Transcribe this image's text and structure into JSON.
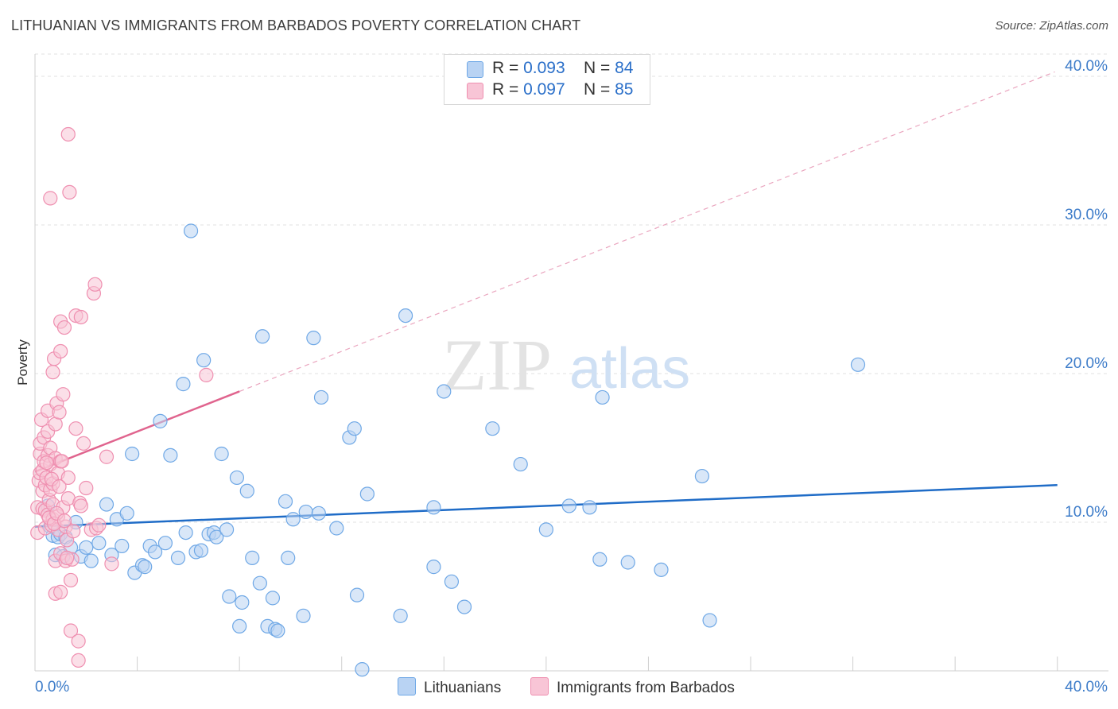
{
  "title": "LITHUANIAN VS IMMIGRANTS FROM BARBADOS POVERTY CORRELATION CHART",
  "source": "Source: ZipAtlas.com",
  "watermark": {
    "zip": "ZIP",
    "atlas": "atlas"
  },
  "colors": {
    "blue": "#6fa8e6",
    "blue_fill": "#b9d3f3",
    "blue_line": "#1f6cc7",
    "pink": "#ef8fb0",
    "pink_fill": "#f8c5d6",
    "pink_line": "#e0648e",
    "tick_text": "#3d7cc9"
  },
  "legend": {
    "rows": [
      {
        "r_label": "R = ",
        "r_value": "0.093",
        "n_label": "N = ",
        "n_value": "84"
      },
      {
        "r_label": "R = ",
        "r_value": "0.097",
        "n_label": "N = ",
        "n_value": "85"
      }
    ]
  },
  "bottom_legend": [
    "Lithuanians",
    "Immigrants from Barbados"
  ],
  "chart_data": {
    "type": "scatter",
    "title": "LITHUANIAN VS IMMIGRANTS FROM BARBADOS POVERTY CORRELATION CHART",
    "xlabel": "",
    "ylabel": "Poverty",
    "xlim": [
      0,
      42
    ],
    "ylim": [
      0,
      41.5
    ],
    "x_tick_labels": [
      "0.0%",
      "40.0%"
    ],
    "y_ticks": [
      10,
      20,
      30,
      40
    ],
    "y_tick_labels": [
      "10.0%",
      "20.0%",
      "30.0%",
      "40.0%"
    ],
    "grid": true,
    "series": [
      {
        "name": "Lithuanians",
        "color": "#6fa8e6",
        "r": 0.093,
        "n": 84,
        "trend": {
          "x": [
            0,
            40
          ],
          "y": [
            9.7,
            12.5
          ],
          "style": "solid"
        },
        "points": [
          [
            0.5,
            11.1
          ],
          [
            0.6,
            9.7
          ],
          [
            0.7,
            9.1
          ],
          [
            0.8,
            7.8
          ],
          [
            0.9,
            9.0
          ],
          [
            1.0,
            9.2
          ],
          [
            1.1,
            7.7
          ],
          [
            1.2,
            9.0
          ],
          [
            1.4,
            8.3
          ],
          [
            1.6,
            10.0
          ],
          [
            1.8,
            7.7
          ],
          [
            2.0,
            8.3
          ],
          [
            2.2,
            7.4
          ],
          [
            2.5,
            8.6
          ],
          [
            2.8,
            11.2
          ],
          [
            3.0,
            7.8
          ],
          [
            3.2,
            10.2
          ],
          [
            3.4,
            8.4
          ],
          [
            3.6,
            10.6
          ],
          [
            3.8,
            14.6
          ],
          [
            3.9,
            6.6
          ],
          [
            4.2,
            7.1
          ],
          [
            4.3,
            7.0
          ],
          [
            4.5,
            8.4
          ],
          [
            4.7,
            8.0
          ],
          [
            4.9,
            16.8
          ],
          [
            5.1,
            8.6
          ],
          [
            5.3,
            14.5
          ],
          [
            5.6,
            7.6
          ],
          [
            5.8,
            19.3
          ],
          [
            5.9,
            9.3
          ],
          [
            6.1,
            29.6
          ],
          [
            6.3,
            8.0
          ],
          [
            6.5,
            8.1
          ],
          [
            6.6,
            20.9
          ],
          [
            6.8,
            9.2
          ],
          [
            7.0,
            9.3
          ],
          [
            7.1,
            9.0
          ],
          [
            7.3,
            14.6
          ],
          [
            7.5,
            9.5
          ],
          [
            7.6,
            5.0
          ],
          [
            7.9,
            13.0
          ],
          [
            8.0,
            3.0
          ],
          [
            8.1,
            4.6
          ],
          [
            8.3,
            12.1
          ],
          [
            8.5,
            7.6
          ],
          [
            8.8,
            5.9
          ],
          [
            8.9,
            22.5
          ],
          [
            9.1,
            3.0
          ],
          [
            9.3,
            4.9
          ],
          [
            9.4,
            2.8
          ],
          [
            9.5,
            2.7
          ],
          [
            9.8,
            11.4
          ],
          [
            9.9,
            7.6
          ],
          [
            10.1,
            10.2
          ],
          [
            10.5,
            3.7
          ],
          [
            10.6,
            10.7
          ],
          [
            10.9,
            22.4
          ],
          [
            11.1,
            10.6
          ],
          [
            11.2,
            18.4
          ],
          [
            11.8,
            9.6
          ],
          [
            12.3,
            15.7
          ],
          [
            12.5,
            16.3
          ],
          [
            12.6,
            5.1
          ],
          [
            12.8,
            0.1
          ],
          [
            13.0,
            11.9
          ],
          [
            14.3,
            3.7
          ],
          [
            14.5,
            23.9
          ],
          [
            15.6,
            7.0
          ],
          [
            15.6,
            11.0
          ],
          [
            16.0,
            18.8
          ],
          [
            16.3,
            6.0
          ],
          [
            16.8,
            4.3
          ],
          [
            17.9,
            16.3
          ],
          [
            19.0,
            13.9
          ],
          [
            20.0,
            9.5
          ],
          [
            20.9,
            11.1
          ],
          [
            21.7,
            11.0
          ],
          [
            22.1,
            7.5
          ],
          [
            22.2,
            18.4
          ],
          [
            23.2,
            7.3
          ],
          [
            24.5,
            6.8
          ],
          [
            26.1,
            13.1
          ],
          [
            26.4,
            3.4
          ],
          [
            32.2,
            20.6
          ]
        ]
      },
      {
        "name": "Immigrants from Barbados",
        "color": "#ef8fb0",
        "r": 0.097,
        "n": 85,
        "trend": {
          "x": [
            0,
            8
          ],
          "y": [
            13.4,
            18.8
          ],
          "style": "solid",
          "extension": {
            "x": [
              8,
              39.9
            ],
            "y": [
              18.8,
              40.3
            ],
            "style": "dashed"
          }
        },
        "points": [
          [
            0.1,
            9.3
          ],
          [
            0.1,
            11.0
          ],
          [
            0.15,
            12.8
          ],
          [
            0.2,
            13.3
          ],
          [
            0.2,
            14.6
          ],
          [
            0.2,
            15.3
          ],
          [
            0.25,
            16.9
          ],
          [
            0.3,
            10.9
          ],
          [
            0.3,
            12.1
          ],
          [
            0.3,
            13.5
          ],
          [
            0.35,
            14.1
          ],
          [
            0.35,
            15.7
          ],
          [
            0.4,
            9.6
          ],
          [
            0.4,
            10.8
          ],
          [
            0.4,
            12.5
          ],
          [
            0.45,
            13.0
          ],
          [
            0.5,
            14.5
          ],
          [
            0.5,
            16.1
          ],
          [
            0.5,
            17.5
          ],
          [
            0.5,
            10.5
          ],
          [
            0.55,
            11.5
          ],
          [
            0.6,
            12.2
          ],
          [
            0.6,
            13.9
          ],
          [
            0.6,
            15.0
          ],
          [
            0.6,
            31.8
          ],
          [
            0.65,
            9.8
          ],
          [
            0.7,
            10.2
          ],
          [
            0.7,
            11.2
          ],
          [
            0.7,
            12.6
          ],
          [
            0.7,
            20.1
          ],
          [
            0.75,
            21.0
          ],
          [
            0.8,
            5.2
          ],
          [
            0.8,
            7.4
          ],
          [
            0.8,
            14.3
          ],
          [
            0.8,
            16.6
          ],
          [
            0.85,
            18.0
          ],
          [
            0.9,
            9.5
          ],
          [
            0.9,
            10.4
          ],
          [
            0.9,
            13.3
          ],
          [
            0.95,
            17.4
          ],
          [
            1.0,
            5.3
          ],
          [
            1.0,
            7.9
          ],
          [
            1.0,
            14.1
          ],
          [
            1.0,
            21.5
          ],
          [
            1.0,
            23.5
          ],
          [
            1.1,
            11.0
          ],
          [
            1.1,
            18.6
          ],
          [
            1.15,
            23.1
          ],
          [
            1.2,
            7.4
          ],
          [
            1.2,
            9.7
          ],
          [
            1.25,
            8.8
          ],
          [
            1.3,
            11.6
          ],
          [
            1.3,
            13.0
          ],
          [
            1.3,
            36.1
          ],
          [
            1.35,
            32.2
          ],
          [
            1.4,
            6.1
          ],
          [
            1.4,
            2.7
          ],
          [
            1.45,
            7.5
          ],
          [
            1.5,
            9.4
          ],
          [
            1.6,
            16.3
          ],
          [
            1.6,
            23.9
          ],
          [
            1.7,
            0.7
          ],
          [
            1.7,
            2.0
          ],
          [
            1.75,
            11.3
          ],
          [
            1.8,
            11.1
          ],
          [
            1.8,
            23.8
          ],
          [
            1.9,
            15.3
          ],
          [
            2.0,
            12.3
          ],
          [
            2.2,
            9.5
          ],
          [
            2.3,
            25.4
          ],
          [
            2.35,
            26.0
          ],
          [
            2.4,
            9.6
          ],
          [
            2.5,
            9.8
          ],
          [
            2.8,
            14.4
          ],
          [
            3.0,
            7.2
          ],
          [
            6.7,
            19.9
          ],
          [
            0.45,
            14.0
          ],
          [
            0.55,
            10.3
          ],
          [
            0.65,
            12.9
          ],
          [
            0.75,
            9.9
          ],
          [
            0.85,
            10.6
          ],
          [
            0.95,
            12.4
          ],
          [
            1.05,
            14.1
          ],
          [
            1.15,
            10.1
          ],
          [
            1.25,
            7.6
          ]
        ]
      }
    ]
  }
}
